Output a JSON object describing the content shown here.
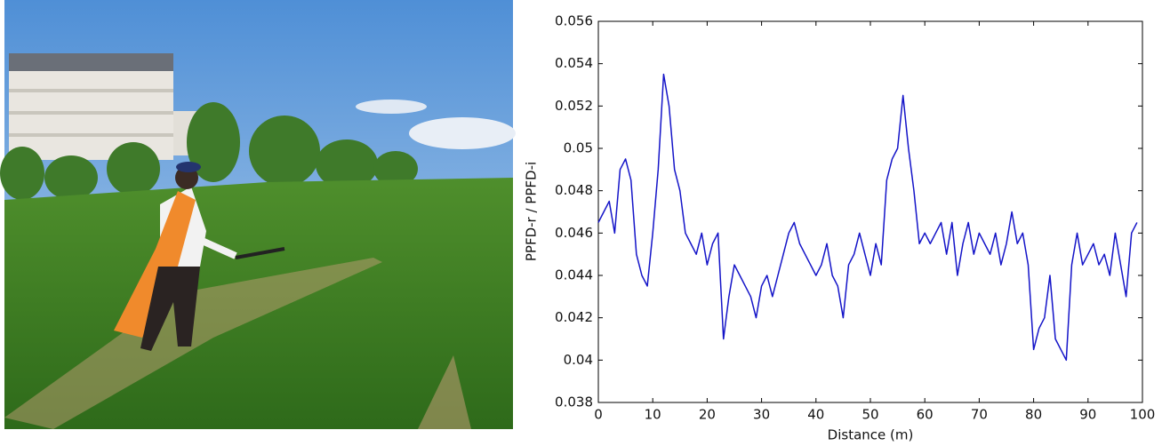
{
  "chart_data": {
    "type": "line",
    "xlabel": "Distance (m)",
    "ylabel": "PPFD-r / PPFD-i",
    "x": [
      0,
      1,
      2,
      3,
      4,
      5,
      6,
      7,
      8,
      9,
      10,
      11,
      12,
      13,
      14,
      15,
      16,
      17,
      18,
      19,
      20,
      21,
      22,
      23,
      24,
      25,
      26,
      27,
      28,
      29,
      30,
      31,
      32,
      33,
      34,
      35,
      36,
      37,
      38,
      39,
      40,
      41,
      42,
      43,
      44,
      45,
      46,
      47,
      48,
      49,
      50,
      51,
      52,
      53,
      54,
      55,
      56,
      57,
      58,
      59,
      60,
      61,
      62,
      63,
      64,
      65,
      66,
      67,
      68,
      69,
      70,
      71,
      72,
      73,
      74,
      75,
      76,
      77,
      78,
      79,
      80,
      81,
      82,
      83,
      84,
      85,
      86,
      87,
      88,
      89,
      90,
      91,
      92,
      93,
      94,
      95,
      96,
      97,
      98,
      99
    ],
    "values": [
      0.0465,
      0.047,
      0.0475,
      0.046,
      0.049,
      0.0495,
      0.0485,
      0.045,
      0.044,
      0.0435,
      0.046,
      0.049,
      0.0535,
      0.052,
      0.049,
      0.048,
      0.046,
      0.0455,
      0.045,
      0.046,
      0.0445,
      0.0455,
      0.046,
      0.041,
      0.043,
      0.0445,
      0.044,
      0.0435,
      0.043,
      0.042,
      0.0435,
      0.044,
      0.043,
      0.044,
      0.045,
      0.046,
      0.0465,
      0.0455,
      0.045,
      0.0445,
      0.044,
      0.0445,
      0.0455,
      0.044,
      0.0435,
      0.042,
      0.0445,
      0.045,
      0.046,
      0.045,
      0.044,
      0.0455,
      0.0445,
      0.0485,
      0.0495,
      0.05,
      0.0525,
      0.05,
      0.048,
      0.0455,
      0.046,
      0.0455,
      0.046,
      0.0465,
      0.045,
      0.0465,
      0.044,
      0.0455,
      0.0465,
      0.045,
      0.046,
      0.0455,
      0.045,
      0.046,
      0.0445,
      0.0455,
      0.047,
      0.0455,
      0.046,
      0.0445,
      0.0405,
      0.0415,
      0.042,
      0.044,
      0.041,
      0.0405,
      0.04,
      0.0445,
      0.046,
      0.0445,
      0.045,
      0.0455,
      0.0445,
      0.045,
      0.044,
      0.046,
      0.0445,
      0.043,
      0.046,
      0.0465
    ],
    "color": "#1414c8",
    "xlim": [
      0,
      100
    ],
    "xticks": [
      0,
      10,
      20,
      30,
      40,
      50,
      60,
      70,
      80,
      90,
      100
    ],
    "ylim": [
      0.038,
      0.056
    ],
    "yticks": [
      0.038,
      0.04,
      0.042,
      0.044,
      0.046,
      0.048,
      0.05,
      0.052,
      0.054,
      0.056
    ]
  }
}
